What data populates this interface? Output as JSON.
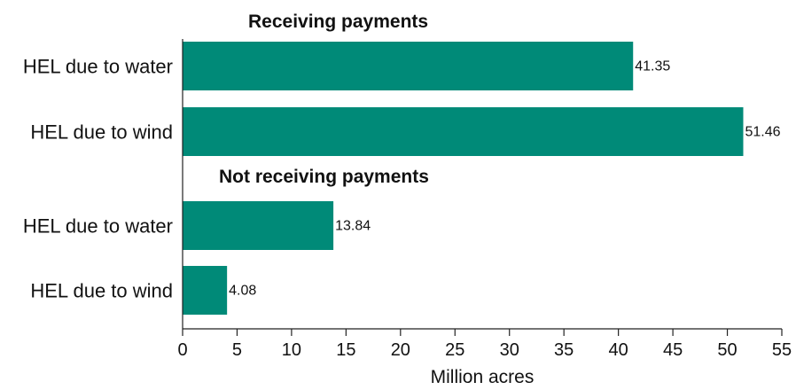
{
  "chart_data": {
    "type": "bar",
    "orientation": "horizontal",
    "xlabel": "Million acres",
    "xlim": [
      0,
      55
    ],
    "x_ticks": [
      0,
      5,
      10,
      15,
      20,
      25,
      30,
      35,
      40,
      45,
      50,
      55
    ],
    "grid": false,
    "bar_color": "#008a78",
    "groups": [
      {
        "title": "Receiving payments",
        "bars": [
          {
            "category": "HEL due to water",
            "value": 41.35,
            "label": "41.35"
          },
          {
            "category": "HEL due to wind",
            "value": 51.46,
            "label": "51.46"
          }
        ]
      },
      {
        "title": "Not receiving payments",
        "bars": [
          {
            "category": "HEL due to water",
            "value": 13.84,
            "label": "13.84"
          },
          {
            "category": "HEL due to wind",
            "value": 4.08,
            "label": "4.08"
          }
        ]
      }
    ]
  }
}
